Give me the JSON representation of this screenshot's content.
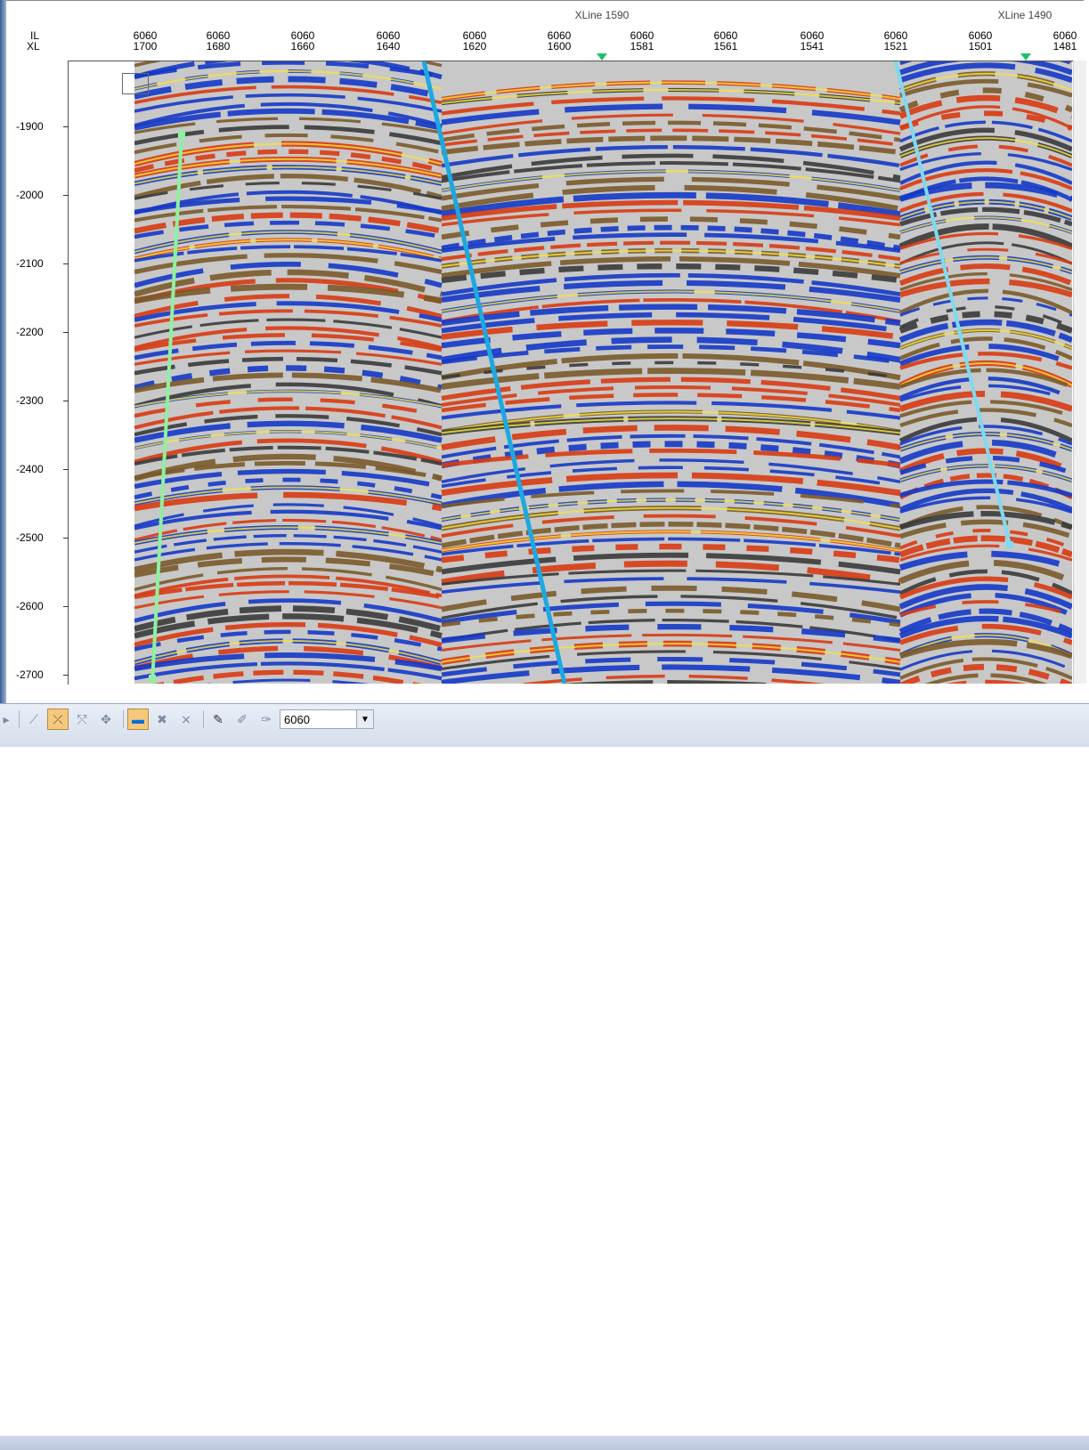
{
  "header": {
    "row_labels": {
      "il": "IL",
      "xl": "XL"
    },
    "xline_labels": [
      "XLine 1590",
      "XLine 1490"
    ],
    "columns": [
      {
        "il": "6060",
        "xl": "1700"
      },
      {
        "il": "6060",
        "xl": "1680"
      },
      {
        "il": "6060",
        "xl": "1660"
      },
      {
        "il": "6060",
        "xl": "1640"
      },
      {
        "il": "6060",
        "xl": "1620"
      },
      {
        "il": "6060",
        "xl": "1600"
      },
      {
        "il": "6060",
        "xl": "1581"
      },
      {
        "il": "6060",
        "xl": "1561"
      },
      {
        "il": "6060",
        "xl": "1541"
      },
      {
        "il": "6060",
        "xl": "1521"
      },
      {
        "il": "6060",
        "xl": "1501"
      },
      {
        "il": "6060",
        "xl": "1481"
      }
    ]
  },
  "depth_axis": {
    "ticks": [
      "-1900",
      "-2000",
      "-2100",
      "-2200",
      "-2300",
      "-2400",
      "-2500",
      "-2600",
      "-2700"
    ]
  },
  "colors": {
    "seismic_positive": "#d83a12",
    "seismic_peak": "#f6e33a",
    "seismic_negative": "#1438c6",
    "seismic_neutral": "#c8c8c8",
    "fault_main": "#1da8e0",
    "fault_right": "#7fd9f0",
    "well_track": "#8ff0a0",
    "marker": "#1fbf6a"
  },
  "toolbar": {
    "icons": [
      "scroll-left-icon",
      "pick-fault-icon",
      "fault-mode-icon",
      "split-fault-icon",
      "move-icon",
      "colorbar-icon",
      "delete-node-icon",
      "delete-segment-icon",
      "pen-icon",
      "pen-smooth-icon",
      "pen-auto-icon"
    ],
    "inline_value": "6060"
  }
}
